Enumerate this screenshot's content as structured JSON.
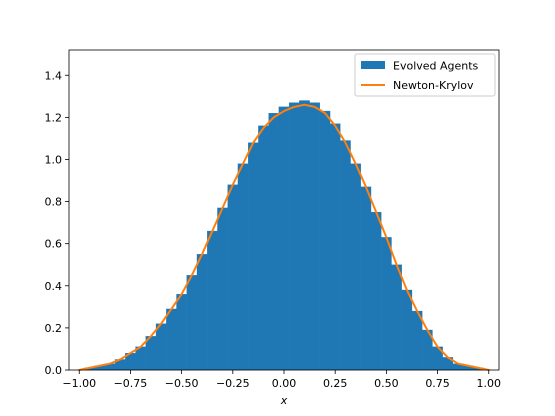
{
  "chart_data": {
    "type": "bar",
    "title": "",
    "xlabel": "x",
    "ylabel": "",
    "xlim": [
      -1.05,
      1.05
    ],
    "ylim": [
      0,
      1.52
    ],
    "grid": false,
    "legend_position": "top-right",
    "x_ticks": [
      -1.0,
      -0.75,
      -0.5,
      -0.25,
      0.0,
      0.25,
      0.5,
      0.75,
      1.0
    ],
    "x_tick_labels": [
      "−1.00",
      "−0.75",
      "−0.50",
      "−0.25",
      "0.00",
      "0.25",
      "0.50",
      "0.75",
      "1.00"
    ],
    "y_ticks": [
      0.0,
      0.2,
      0.4,
      0.6,
      0.8,
      1.0,
      1.2,
      1.4
    ],
    "y_tick_labels": [
      "0.0",
      "0.2",
      "0.4",
      "0.6",
      "0.8",
      "1.0",
      "1.2",
      "1.4"
    ],
    "series": [
      {
        "name": "Evolved Agents",
        "kind": "histogram",
        "color": "#1f77b4",
        "bin_centers": [
          -0.95,
          -0.9,
          -0.85,
          -0.8,
          -0.75,
          -0.7,
          -0.65,
          -0.6,
          -0.55,
          -0.5,
          -0.45,
          -0.4,
          -0.35,
          -0.3,
          -0.25,
          -0.2,
          -0.15,
          -0.1,
          -0.05,
          0.0,
          0.05,
          0.1,
          0.15,
          0.2,
          0.25,
          0.3,
          0.35,
          0.4,
          0.45,
          0.5,
          0.55,
          0.6,
          0.65,
          0.7,
          0.75,
          0.8,
          0.85,
          0.9,
          0.95
        ],
        "values": [
          0.01,
          0.02,
          0.03,
          0.05,
          0.08,
          0.11,
          0.16,
          0.22,
          0.29,
          0.36,
          0.45,
          0.55,
          0.66,
          0.77,
          0.88,
          0.98,
          1.08,
          1.16,
          1.22,
          1.25,
          1.27,
          1.28,
          1.27,
          1.23,
          1.17,
          1.09,
          0.98,
          0.87,
          0.75,
          0.63,
          0.5,
          0.38,
          0.28,
          0.19,
          0.11,
          0.06,
          0.03,
          0.02,
          0.01
        ]
      },
      {
        "name": "Newton-Krylov",
        "kind": "line",
        "color": "#ff7f0e",
        "x": [
          -1.0,
          -0.95,
          -0.9,
          -0.85,
          -0.8,
          -0.75,
          -0.7,
          -0.65,
          -0.6,
          -0.55,
          -0.5,
          -0.45,
          -0.4,
          -0.35,
          -0.3,
          -0.25,
          -0.2,
          -0.15,
          -0.1,
          -0.05,
          0.0,
          0.05,
          0.1,
          0.15,
          0.2,
          0.25,
          0.3,
          0.35,
          0.4,
          0.45,
          0.5,
          0.55,
          0.6,
          0.65,
          0.7,
          0.75,
          0.8,
          0.85,
          0.9,
          0.95,
          1.0
        ],
        "y": [
          0.0,
          0.01,
          0.02,
          0.03,
          0.05,
          0.08,
          0.11,
          0.16,
          0.22,
          0.29,
          0.36,
          0.45,
          0.55,
          0.66,
          0.77,
          0.88,
          0.98,
          1.08,
          1.15,
          1.2,
          1.23,
          1.25,
          1.26,
          1.25,
          1.22,
          1.16,
          1.08,
          0.98,
          0.87,
          0.75,
          0.63,
          0.5,
          0.38,
          0.28,
          0.19,
          0.11,
          0.06,
          0.03,
          0.02,
          0.01,
          0.0
        ]
      }
    ]
  }
}
